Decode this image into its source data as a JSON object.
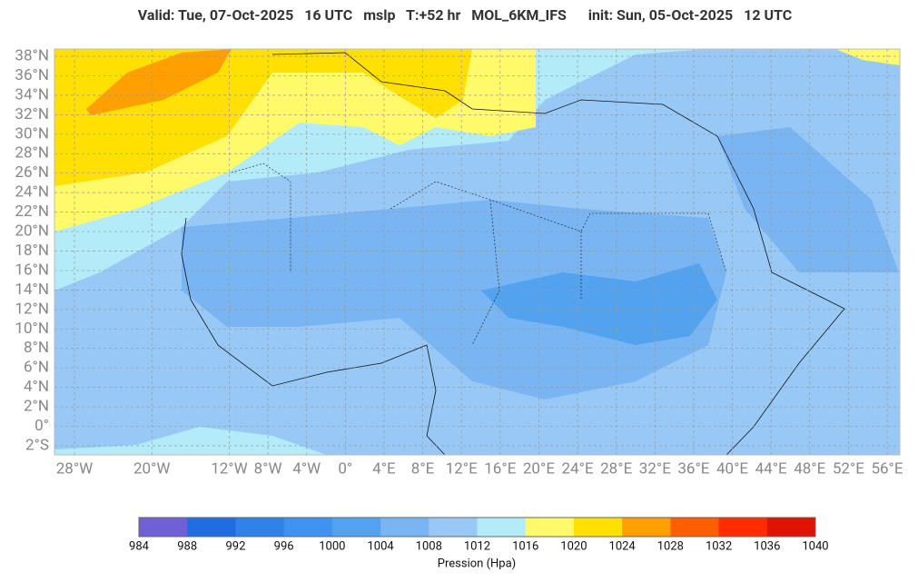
{
  "header": {
    "title": "Valid: Tue, 07-Oct-2025   16 UTC   mslp   T:+52 hr   MOL_6KM_IFS      init: Sun, 05-Oct-2025   12 UTC"
  },
  "map": {
    "lat_ticks": [
      {
        "value": 38,
        "label": "38°N"
      },
      {
        "value": 36,
        "label": "36°N"
      },
      {
        "value": 34,
        "label": "34°N"
      },
      {
        "value": 32,
        "label": "32°N"
      },
      {
        "value": 30,
        "label": "30°N"
      },
      {
        "value": 28,
        "label": "28°N"
      },
      {
        "value": 26,
        "label": "26°N"
      },
      {
        "value": 24,
        "label": "24°N"
      },
      {
        "value": 22,
        "label": "22°N"
      },
      {
        "value": 20,
        "label": "20°N"
      },
      {
        "value": 18,
        "label": "18°N"
      },
      {
        "value": 16,
        "label": "16°N"
      },
      {
        "value": 14,
        "label": "14°N"
      },
      {
        "value": 12,
        "label": "12°N"
      },
      {
        "value": 10,
        "label": "10°N"
      },
      {
        "value": 8,
        "label": "8°N"
      },
      {
        "value": 6,
        "label": "6°N"
      },
      {
        "value": 4,
        "label": "4°N"
      },
      {
        "value": 2,
        "label": "2°N"
      },
      {
        "value": 0,
        "label": "0°"
      },
      {
        "value": -2,
        "label": "2°S"
      }
    ],
    "lon_ticks": [
      {
        "value": -28,
        "label": "28°W"
      },
      {
        "value": -20,
        "label": "20°W"
      },
      {
        "value": -12,
        "label": "12°W"
      },
      {
        "value": -8,
        "label": "8°W"
      },
      {
        "value": -4,
        "label": "4°W"
      },
      {
        "value": 0,
        "label": "0°"
      },
      {
        "value": 4,
        "label": "4°E"
      },
      {
        "value": 8,
        "label": "8°E"
      },
      {
        "value": 12,
        "label": "12°E"
      },
      {
        "value": 16,
        "label": "16°E"
      },
      {
        "value": 20,
        "label": "20°E"
      },
      {
        "value": 24,
        "label": "24°E"
      },
      {
        "value": 28,
        "label": "28°E"
      },
      {
        "value": 32,
        "label": "32°E"
      },
      {
        "value": 36,
        "label": "36°E"
      },
      {
        "value": 40,
        "label": "40°E"
      },
      {
        "value": 44,
        "label": "44°E"
      },
      {
        "value": 48,
        "label": "48°E"
      },
      {
        "value": 52,
        "label": "52°E"
      },
      {
        "value": 56,
        "label": "56°E"
      }
    ]
  },
  "colorbar": {
    "levels": [
      984,
      988,
      992,
      996,
      1000,
      1004,
      1008,
      1012,
      1016,
      1020,
      1024,
      1028,
      1032,
      1036,
      1040
    ],
    "colors": [
      "#7060d8",
      "#1f6de0",
      "#2f82ea",
      "#3d93f0",
      "#52a2ef",
      "#78b5f2",
      "#98c9f6",
      "#b3ecf8",
      "#fffa6a",
      "#ffe000",
      "#ff9f00",
      "#ff5f00",
      "#ff2c00",
      "#e01200"
    ],
    "label": "Pression (Hpa)"
  }
}
